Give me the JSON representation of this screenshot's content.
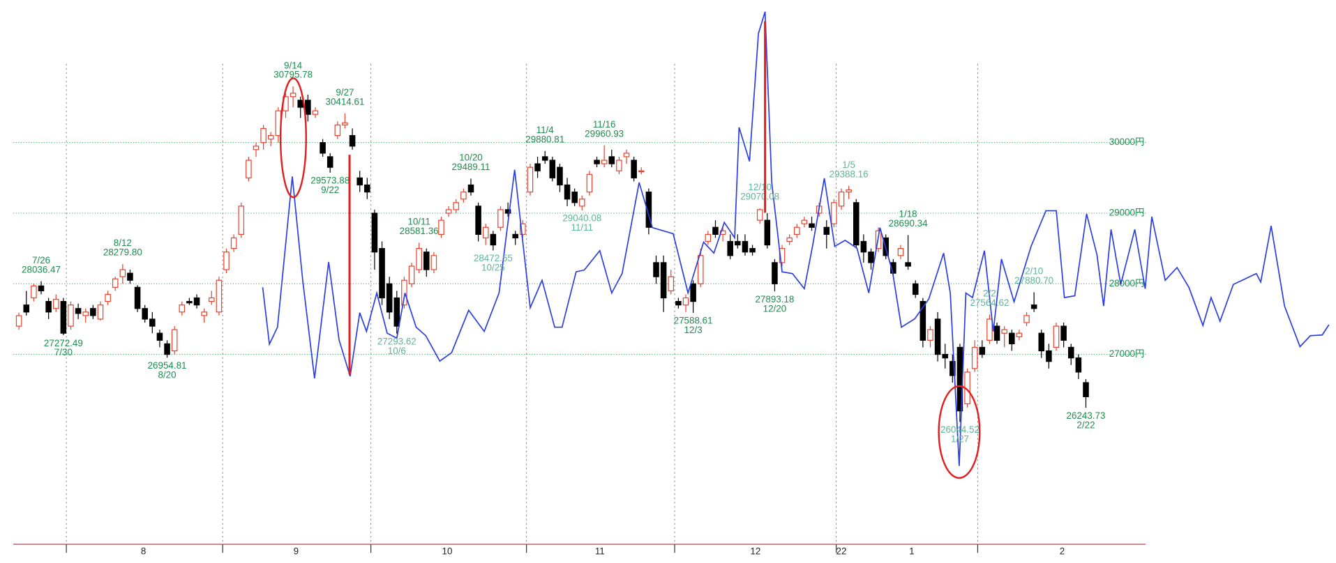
{
  "chart_data": {
    "type": "candlestick",
    "xlim": [
      -2.5,
      177.7
    ],
    "ylim": [
      24310,
      32020
    ],
    "yticks": [
      {
        "value": 27000,
        "label": "27000円"
      },
      {
        "value": 28000,
        "label": "28000円"
      },
      {
        "value": 29000,
        "label": "29000円"
      },
      {
        "value": 30000,
        "label": "30000円"
      }
    ],
    "grid": true,
    "separators": [
      6.4,
      27.5,
      47.5,
      68.5,
      88.5,
      110.3,
      129.4
    ],
    "month_labels": [
      {
        "value": 16.8,
        "label": "8"
      },
      {
        "value": 37.4,
        "label": "9"
      },
      {
        "value": 57.8,
        "label": "10"
      },
      {
        "value": 78.4,
        "label": "11"
      },
      {
        "value": 99.4,
        "label": "12"
      },
      {
        "value": 111,
        "label": "22"
      },
      {
        "value": 120.5,
        "label": "1"
      },
      {
        "value": 140.8,
        "label": "2"
      }
    ],
    "up_color": "#e8432e",
    "down_color": "#000000",
    "candles": [
      [
        27400,
        27590,
        27350,
        27548
      ],
      [
        27700,
        27900,
        27550,
        27600
      ],
      [
        27800,
        28000,
        27750,
        27970
      ],
      [
        27970,
        28036.47,
        27850,
        27900
      ],
      [
        27750,
        27800,
        27500,
        27600
      ],
      [
        27650,
        27850,
        27600,
        27780
      ],
      [
        27750,
        27800,
        27272.49,
        27300
      ],
      [
        27400,
        27750,
        27350,
        27700
      ],
      [
        27650,
        27720,
        27500,
        27580
      ],
      [
        27550,
        27650,
        27450,
        27600
      ],
      [
        27650,
        27700,
        27500,
        27550
      ],
      [
        27500,
        27750,
        27480,
        27700
      ],
      [
        27750,
        27900,
        27700,
        27850
      ],
      [
        27950,
        28100,
        27900,
        28070
      ],
      [
        28100,
        28279.8,
        28000,
        28200
      ],
      [
        28150,
        28200,
        28000,
        28050
      ],
      [
        27950,
        27980,
        27600,
        27650
      ],
      [
        27650,
        27700,
        27450,
        27500
      ],
      [
        27500,
        27600,
        27300,
        27400
      ],
      [
        27300,
        27350,
        27100,
        27200
      ],
      [
        27150,
        27200,
        26954.81,
        27000
      ],
      [
        27050,
        27400,
        27000,
        27350
      ],
      [
        27600,
        27750,
        27550,
        27700
      ],
      [
        27750,
        27800,
        27700,
        27730
      ],
      [
        27800,
        27850,
        27650,
        27700
      ],
      [
        27550,
        27650,
        27450,
        27600
      ],
      [
        27750,
        27900,
        27700,
        27800
      ],
      [
        27600,
        28100,
        27550,
        28050
      ],
      [
        28200,
        28500,
        28150,
        28450
      ],
      [
        28500,
        28700,
        28450,
        28650
      ],
      [
        28700,
        29150,
        28650,
        29100
      ],
      [
        29500,
        29800,
        29450,
        29750
      ],
      [
        29900,
        30000,
        29800,
        29950
      ],
      [
        30000,
        30250,
        29900,
        30200
      ],
      [
        30050,
        30150,
        29950,
        30100
      ],
      [
        30100,
        30500,
        30000,
        30450
      ],
      [
        30450,
        30700,
        30350,
        30650
      ],
      [
        30650,
        30795.78,
        30500,
        30700
      ],
      [
        30600,
        30650,
        30350,
        30500
      ],
      [
        30600,
        30680,
        30300,
        30400
      ],
      [
        30400,
        30500,
        30350,
        30450
      ],
      [
        30000,
        30050,
        29800,
        29850
      ],
      [
        29800,
        29850,
        29573.88,
        29650
      ],
      [
        30100,
        30300,
        30050,
        30250
      ],
      [
        30250,
        30414.61,
        30200,
        30280
      ],
      [
        30100,
        30200,
        29900,
        29950
      ],
      [
        29500,
        29600,
        29300,
        29400
      ],
      [
        29400,
        29500,
        29200,
        29300
      ],
      [
        29000,
        29050,
        28200,
        28450
      ],
      [
        28500,
        28600,
        27700,
        27800
      ],
      [
        28000,
        28100,
        27500,
        27600
      ],
      [
        27800,
        27900,
        27293.62,
        27400
      ],
      [
        27700,
        28100,
        27650,
        28050
      ],
      [
        28000,
        28300,
        27950,
        28250
      ],
      [
        28200,
        28581.36,
        28150,
        28500
      ],
      [
        28450,
        28500,
        28100,
        28200
      ],
      [
        28200,
        28450,
        28150,
        28400
      ],
      [
        28700,
        28950,
        28650,
        28900
      ],
      [
        29000,
        29100,
        28950,
        29050
      ],
      [
        29050,
        29200,
        29000,
        29150
      ],
      [
        29200,
        29350,
        29150,
        29300
      ],
      [
        29400,
        29489.11,
        29250,
        29300
      ],
      [
        29100,
        29150,
        28600,
        28700
      ],
      [
        28650,
        28850,
        28550,
        28800
      ],
      [
        28700,
        28750,
        28472.55,
        28550
      ],
      [
        28800,
        29100,
        28750,
        29050
      ],
      [
        29050,
        29150,
        28950,
        29000
      ],
      [
        28700,
        28750,
        28550,
        28650
      ],
      [
        28700,
        28900,
        28650,
        28850
      ],
      [
        29300,
        29700,
        29250,
        29650
      ],
      [
        29700,
        29800,
        29500,
        29600
      ],
      [
        29800,
        29880.81,
        29700,
        29750
      ],
      [
        29750,
        29800,
        29450,
        29500
      ],
      [
        29650,
        29700,
        29300,
        29400
      ],
      [
        29400,
        29500,
        29100,
        29200
      ],
      [
        29300,
        29350,
        29100,
        29150
      ],
      [
        29100,
        29250,
        29040.08,
        29200
      ],
      [
        29300,
        29600,
        29250,
        29550
      ],
      [
        29750,
        29800,
        29650,
        29700
      ],
      [
        29700,
        29960.93,
        29650,
        29750
      ],
      [
        29800,
        29900,
        29650,
        29700
      ],
      [
        29600,
        29800,
        29550,
        29750
      ],
      [
        29800,
        29900,
        29700,
        29850
      ],
      [
        29750,
        29800,
        29450,
        29500
      ],
      [
        29600,
        29650,
        29550,
        29600
      ],
      [
        29300,
        29350,
        28700,
        28800
      ],
      [
        28300,
        28400,
        28000,
        28100
      ],
      [
        28300,
        28400,
        27600,
        27800
      ],
      [
        27900,
        28200,
        27850,
        28100
      ],
      [
        27750,
        27800,
        27650,
        27700
      ],
      [
        27700,
        27850,
        27600,
        27800
      ],
      [
        28000,
        28050,
        27588.61,
        27750
      ],
      [
        28000,
        28500,
        27950,
        28400
      ],
      [
        28600,
        28750,
        28550,
        28700
      ],
      [
        28800,
        28900,
        28650,
        28700
      ],
      [
        28700,
        28800,
        28600,
        28750
      ],
      [
        28600,
        28700,
        28350,
        28400
      ],
      [
        28600,
        28700,
        28500,
        28550
      ],
      [
        28600,
        28700,
        28400,
        28450
      ],
      [
        28500,
        28550,
        28400,
        28450
      ],
      [
        28900,
        29070.08,
        28850,
        29050
      ],
      [
        28900,
        29000,
        28500,
        28550
      ],
      [
        28300,
        28350,
        27893.18,
        28000
      ],
      [
        28300,
        28550,
        28250,
        28500
      ],
      [
        28600,
        28700,
        28550,
        28650
      ],
      [
        28700,
        28850,
        28650,
        28800
      ],
      [
        28850,
        28950,
        28800,
        28900
      ],
      [
        28850,
        28950,
        28750,
        28800
      ],
      [
        29000,
        29150,
        28950,
        29100
      ],
      [
        28800,
        28900,
        28500,
        28700
      ],
      [
        28850,
        29200,
        28800,
        29150
      ],
      [
        29100,
        29350,
        29050,
        29300
      ],
      [
        29300,
        29388.16,
        29200,
        29330
      ],
      [
        29150,
        29200,
        28500,
        28550
      ],
      [
        28600,
        28700,
        28300,
        28450
      ],
      [
        28450,
        28500,
        28200,
        28300
      ],
      [
        28500,
        28800,
        28450,
        28750
      ],
      [
        28650,
        28700,
        28350,
        28400
      ],
      [
        28300,
        28350,
        28100,
        28150
      ],
      [
        28400,
        28550,
        28350,
        28500
      ],
      [
        28300,
        28690.34,
        28200,
        28250
      ],
      [
        28000,
        28050,
        27800,
        27850
      ],
      [
        27750,
        27800,
        27100,
        27200
      ],
      [
        27200,
        27400,
        27100,
        27350
      ],
      [
        27500,
        27600,
        26900,
        27000
      ],
      [
        27000,
        27150,
        26800,
        26950
      ],
      [
        26900,
        27000,
        26600,
        26700
      ],
      [
        27100,
        27150,
        26044.52,
        26200
      ],
      [
        26300,
        26800,
        26250,
        26750
      ],
      [
        26800,
        27200,
        26750,
        27100
      ],
      [
        27100,
        27200,
        26950,
        27000
      ],
      [
        27200,
        27564.62,
        27150,
        27500
      ],
      [
        27400,
        27450,
        27150,
        27200
      ],
      [
        27300,
        27400,
        27100,
        27350
      ],
      [
        27300,
        27350,
        27050,
        27150
      ],
      [
        27250,
        27350,
        27200,
        27300
      ],
      [
        27450,
        27600,
        27400,
        27550
      ],
      [
        27700,
        27880.7,
        27600,
        27650
      ],
      [
        27300,
        27350,
        26950,
        27050
      ],
      [
        27050,
        27150,
        26800,
        26900
      ],
      [
        27100,
        27450,
        27050,
        27400
      ],
      [
        27400,
        27450,
        27100,
        27200
      ],
      [
        27100,
        27150,
        26850,
        26950
      ],
      [
        26950,
        27000,
        26650,
        26750
      ],
      [
        26600,
        26650,
        26243.73,
        26400
      ]
    ],
    "line": {
      "color": "#2b3fe0",
      "x": [
        32.9,
        33.8,
        34.9,
        36.9,
        38.3,
        39.9,
        41.8,
        43.2,
        44.7,
        46.0,
        46.9,
        48.3,
        49.7,
        51.0,
        52.1,
        53.6,
        54.9,
        56.8,
        58.4,
        60.7,
        62.8,
        64.8,
        66.9,
        69.0,
        70.6,
        72.3,
        73.3,
        75.2,
        76.3,
        78.4,
        80.0,
        81.4,
        83.7,
        85.5,
        88.3,
        90.3,
        92.4,
        93.8,
        95.2,
        96.6,
        97.2,
        98.6,
        99.8,
        100.7,
        101.6,
        103.0,
        104.4,
        106.0,
        107.1,
        108.7,
        110.1,
        111.5,
        113.1,
        114.7,
        116.2,
        117.9,
        119.1,
        120.9,
        122.8,
        124.8,
        125.7,
        126.9,
        127.8,
        128.7,
        130.3,
        131.5,
        132.6,
        134.3,
        136.6,
        138.6,
        140.0,
        141.1,
        142.5,
        144.1,
        145.5,
        146.4,
        147.4,
        148.7,
        150.6,
        152.0,
        152.9,
        154.7,
        156.3,
        157.9,
        159.8,
        160.9,
        162.1,
        163.9,
        167.0,
        167.6,
        169.0,
        170.8,
        172.9,
        174.3,
        175.9,
        176.8
      ],
      "values": [
        27950,
        27145,
        27385,
        29520,
        28050,
        26660,
        28310,
        27205,
        26690,
        27590,
        27325,
        27870,
        27300,
        27230,
        27870,
        27385,
        27265,
        26905,
        27025,
        27625,
        27325,
        27870,
        29615,
        27660,
        28050,
        27385,
        27385,
        28170,
        28195,
        28470,
        27870,
        28145,
        29435,
        28795,
        28710,
        27870,
        28590,
        28435,
        28870,
        28650,
        30215,
        29735,
        31545,
        31855,
        29435,
        28170,
        28145,
        27930,
        28530,
        29495,
        28530,
        28615,
        28505,
        27870,
        28795,
        28170,
        27385,
        27505,
        27785,
        28435,
        27870,
        25420,
        27870,
        27805,
        28470,
        27325,
        28350,
        27745,
        28530,
        29035,
        29035,
        27805,
        27830,
        28990,
        28410,
        27685,
        28770,
        27990,
        28770,
        27930,
        28950,
        28050,
        28230,
        27950,
        27410,
        27805,
        27470,
        27990,
        28145,
        28025,
        28820,
        27685,
        27110,
        27265,
        27275,
        27420
      ]
    },
    "annotations": [
      {
        "date": "7/26",
        "value": 28036.47,
        "index": 3,
        "side": "above",
        "color": "#1e8c50"
      },
      {
        "date": "7/30",
        "value": 27272.49,
        "index": 6,
        "side": "below",
        "color": "#1e8c50"
      },
      {
        "date": "8/12",
        "value": 28279.8,
        "value_label": "28279.80",
        "index": 14,
        "side": "above",
        "color": "#1e8c50"
      },
      {
        "date": "8/20",
        "value": 26954.81,
        "index": 20,
        "side": "below",
        "color": "#1e8c50"
      },
      {
        "date": "9/14",
        "value": 30795.78,
        "index": 37,
        "side": "above",
        "color": "#1e8c50"
      },
      {
        "date": "9/22",
        "value": 29573.88,
        "index": 42,
        "side": "below",
        "color": "#1e8c50"
      },
      {
        "date": "9/27",
        "value": 30414.61,
        "index": 44,
        "side": "above",
        "color": "#1e8c50"
      },
      {
        "date": "10/6",
        "value": 27293.62,
        "index": 51,
        "side": "below",
        "color": "#5fb49a"
      },
      {
        "date": "10/11",
        "value": 28581.36,
        "index": 54,
        "side": "above",
        "color": "#1e8c50"
      },
      {
        "date": "10/20",
        "value": 29489.11,
        "index": 61,
        "side": "above",
        "color": "#1e8c50"
      },
      {
        "date": "10/25",
        "value": 28472.55,
        "index": 64,
        "side": "below",
        "color": "#5fb49a"
      },
      {
        "date": "11/4",
        "value": 29880.81,
        "index": 71,
        "side": "above",
        "color": "#1e8c50"
      },
      {
        "date": "11/11",
        "value": 29040.08,
        "index": 76,
        "side": "below",
        "color": "#5fb49a"
      },
      {
        "date": "11/16",
        "value": 29960.93,
        "index": 79,
        "side": "above",
        "color": "#1e8c50"
      },
      {
        "date": "12/3",
        "value": 27588.61,
        "index": 91,
        "side": "below",
        "color": "#1e8c50"
      },
      {
        "date": "12/10",
        "value": 29070.08,
        "index": 100,
        "side": "above",
        "color": "#5fb49a"
      },
      {
        "date": "12/20",
        "value": 27893.18,
        "index": 102,
        "side": "below",
        "color": "#1e8c50"
      },
      {
        "date": "1/5",
        "value": 29388.16,
        "index": 112,
        "side": "above",
        "color": "#5fb49a"
      },
      {
        "date": "1/18",
        "value": 28690.34,
        "index": 120,
        "side": "above",
        "color": "#1e8c50"
      },
      {
        "date": "1/27",
        "value": 26044.52,
        "index": 127,
        "side": "below",
        "color": "#5fb49a"
      },
      {
        "date": "2/2",
        "value": 27564.62,
        "index": 131,
        "side": "above",
        "color": "#5fb49a"
      },
      {
        "date": "2/10",
        "value": 27880.7,
        "value_label": "27880.70",
        "index": 137,
        "side": "above",
        "color": "#5fb49a"
      },
      {
        "date": "2/22",
        "value": 26243.73,
        "index": 144,
        "side": "below",
        "color": "#1e8c50"
      }
    ]
  }
}
